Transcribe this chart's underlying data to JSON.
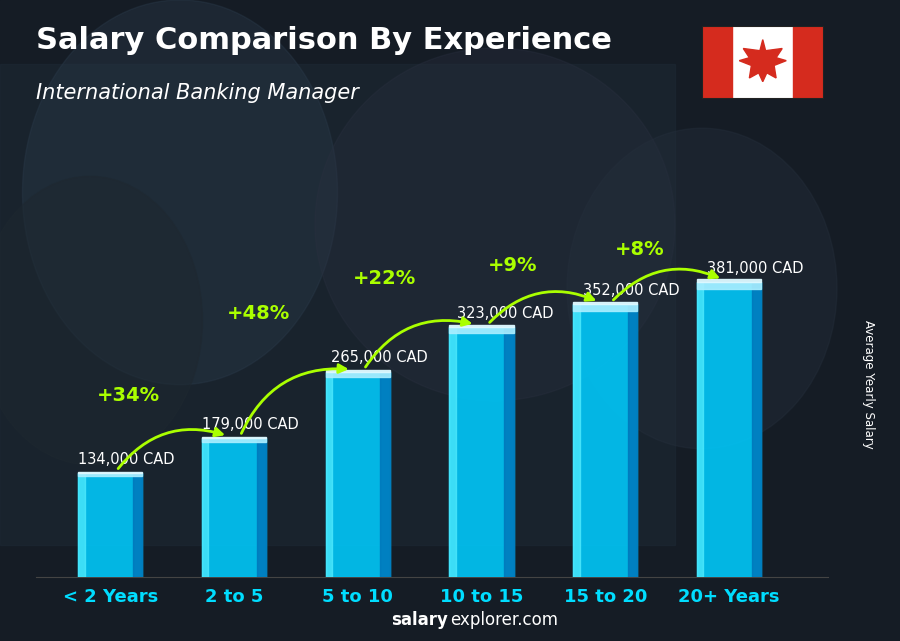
{
  "title": "Salary Comparison By Experience",
  "subtitle": "International Banking Manager",
  "categories": [
    "< 2 Years",
    "2 to 5",
    "5 to 10",
    "10 to 15",
    "15 to 20",
    "20+ Years"
  ],
  "values": [
    134000,
    179000,
    265000,
    323000,
    352000,
    381000
  ],
  "labels": [
    "134,000 CAD",
    "179,000 CAD",
    "265,000 CAD",
    "323,000 CAD",
    "352,000 CAD",
    "381,000 CAD"
  ],
  "pct_changes": [
    "+34%",
    "+48%",
    "+22%",
    "+9%",
    "+8%"
  ],
  "bar_face_color": "#00ccff",
  "bar_left_color": "#55eeff",
  "bar_right_color": "#0077bb",
  "bar_top_color": "#aaeeff",
  "background_dark": "#111820",
  "title_color": "#ffffff",
  "subtitle_color": "#ffffff",
  "label_color": "#ffffff",
  "pct_color": "#aaff00",
  "cat_color": "#00ddff",
  "ylabel_text": "Average Yearly Salary",
  "footer_bold": "salary",
  "footer_normal": "explorer.com",
  "ylim": [
    0,
    480000
  ],
  "bar_width": 0.52,
  "xlim": [
    -0.6,
    5.8
  ]
}
